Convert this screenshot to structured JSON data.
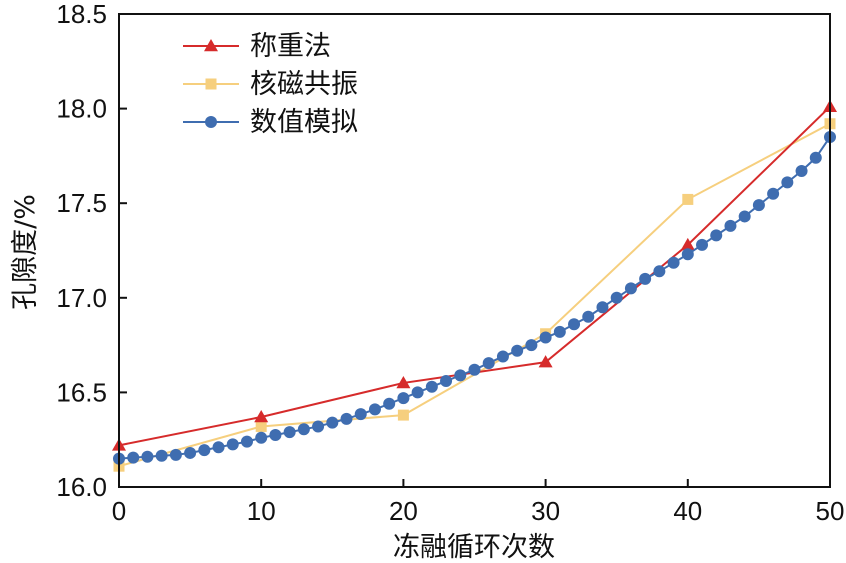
{
  "chart_data": {
    "type": "line",
    "title": "",
    "xlabel": "冻融循环次数",
    "ylabel": "孔隙度/%",
    "xlim": [
      0,
      50
    ],
    "ylim": [
      16.0,
      18.5
    ],
    "x_ticks": [
      0,
      10,
      20,
      30,
      40,
      50
    ],
    "y_ticks": [
      16.0,
      16.5,
      17.0,
      17.5,
      18.0,
      18.5
    ],
    "x_tick_labels": [
      "0",
      "10",
      "20",
      "30",
      "40",
      "50"
    ],
    "y_tick_labels": [
      "16.0",
      "16.5",
      "17.0",
      "17.5",
      "18.0",
      "18.5"
    ],
    "legend_position": "top-left",
    "series": [
      {
        "name": "称重法",
        "color": "#d62b2b",
        "marker": "triangle",
        "x": [
          0,
          10,
          20,
          30,
          40,
          50
        ],
        "values": [
          16.22,
          16.37,
          16.55,
          16.66,
          17.28,
          18.01
        ]
      },
      {
        "name": "核磁共振",
        "color": "#f6cf7e",
        "marker": "square",
        "x": [
          0,
          10,
          20,
          30,
          40,
          50
        ],
        "values": [
          16.11,
          16.32,
          16.38,
          16.81,
          17.52,
          17.92
        ]
      },
      {
        "name": "数值模拟",
        "color": "#3f6db0",
        "marker": "circle",
        "x": [
          0,
          1,
          2,
          3,
          4,
          5,
          6,
          7,
          8,
          9,
          10,
          11,
          12,
          13,
          14,
          15,
          16,
          17,
          18,
          19,
          20,
          21,
          22,
          23,
          24,
          25,
          26,
          27,
          28,
          29,
          30,
          31,
          32,
          33,
          34,
          35,
          36,
          37,
          38,
          39,
          40,
          41,
          42,
          43,
          44,
          45,
          46,
          47,
          48,
          49,
          50
        ],
        "values": [
          16.15,
          16.155,
          16.16,
          16.165,
          16.17,
          16.18,
          16.195,
          16.21,
          16.225,
          16.24,
          16.26,
          16.275,
          16.29,
          16.305,
          16.32,
          16.34,
          16.36,
          16.385,
          16.41,
          16.44,
          16.47,
          16.5,
          16.53,
          16.56,
          16.59,
          16.62,
          16.655,
          16.69,
          16.72,
          16.75,
          16.79,
          16.82,
          16.86,
          16.9,
          16.95,
          17.0,
          17.05,
          17.1,
          17.14,
          17.185,
          17.23,
          17.28,
          17.33,
          17.38,
          17.43,
          17.49,
          17.55,
          17.61,
          17.67,
          17.74,
          17.85
        ]
      }
    ]
  }
}
